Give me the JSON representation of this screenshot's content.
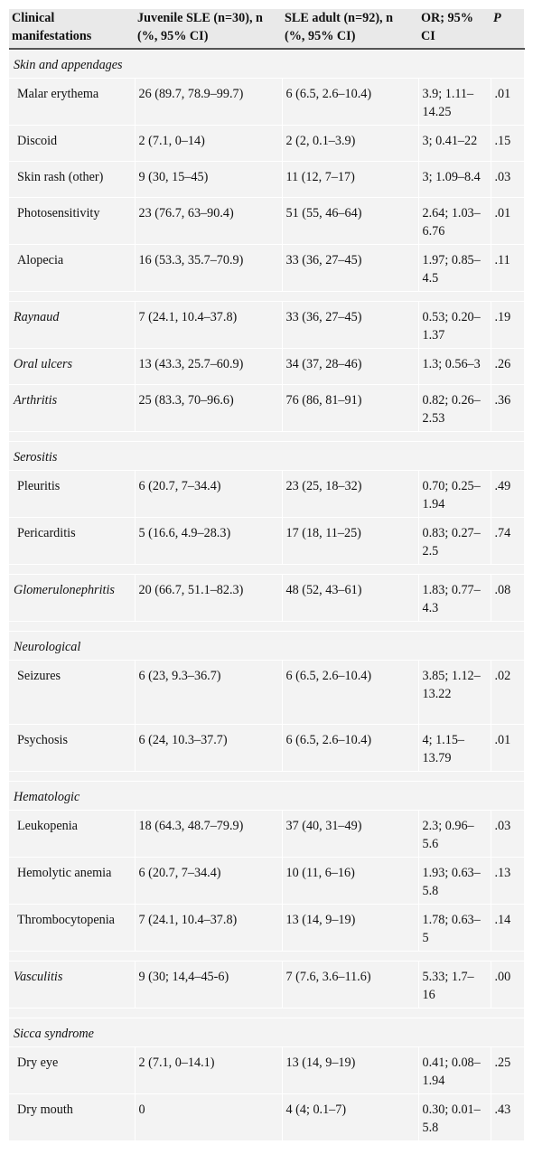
{
  "headers": {
    "manifestations": "Clinical manifestations",
    "juvenile": "Juvenile SLE (n=30), n (%, 95% CI)",
    "adult": "SLE adult (n=92), n (%, 95% CI)",
    "or": "OR; 95% CI",
    "p": "P"
  },
  "categories": {
    "skin": "Skin and appendages",
    "serositis": "Serositis",
    "neuro": "Neurological",
    "hemato": "Hematologic",
    "sicca": "Sicca syndrome"
  },
  "rows": {
    "malar": {
      "name": "Malar erythema",
      "juvenile": "26 (89.7, 78.9–99.7)",
      "adult": "6 (6.5, 2.6–10.4)",
      "or": "3.9; 1.11–14.25",
      "p": ".01"
    },
    "discoid": {
      "name": "Discoid",
      "juvenile": "2 (7.1, 0–14)",
      "adult": "2 (2, 0.1–3.9)",
      "or": "3; 0.41–22",
      "p": ".15"
    },
    "rash": {
      "name": "Skin rash (other)",
      "juvenile": "9 (30, 15–45)",
      "adult": "11 (12, 7–17)",
      "or": "3; 1.09–8.4",
      "p": ".03"
    },
    "photo": {
      "name": "Photosensitivity",
      "juvenile": "23 (76.7, 63–90.4)",
      "adult": "51 (55, 46–64)",
      "or": "2.64; 1.03–6.76",
      "p": ".01"
    },
    "alopecia": {
      "name": "Alopecia",
      "juvenile": "16 (53.3, 35.7–70.9)",
      "adult": "33 (36, 27–45)",
      "or": "1.97; 0.85–4.5",
      "p": ".11"
    },
    "raynaud": {
      "name": "Raynaud",
      "juvenile": "7 (24.1, 10.4–37.8)",
      "adult": "33 (36, 27–45)",
      "or": "0.53; 0.20–1.37",
      "p": ".19"
    },
    "oral": {
      "name": "Oral ulcers",
      "juvenile": "13 (43.3, 25.7–60.9)",
      "adult": "34 (37, 28–46)",
      "or": "1.3; 0.56–3",
      "p": ".26"
    },
    "arthritis": {
      "name": "Arthritis",
      "juvenile": "25 (83.3, 70–96.6)",
      "adult": "76 (86, 81–91)",
      "or": "0.82; 0.26–2.53",
      "p": ".36"
    },
    "pleuritis": {
      "name": "Pleuritis",
      "juvenile": "6 (20.7, 7–34.4)",
      "adult": "23 (25, 18–32)",
      "or": "0.70; 0.25–1.94",
      "p": ".49"
    },
    "pericarditis": {
      "name": "Pericarditis",
      "juvenile": "5 (16.6, 4.9–28.3)",
      "adult": "17 (18, 11–25)",
      "or": "0.83; 0.27–2.5",
      "p": ".74"
    },
    "glomerulo": {
      "name": "Glomerulonephritis",
      "juvenile": "20 (66.7, 51.1–82.3)",
      "adult": "48 (52, 43–61)",
      "or": "1.83; 0.77–4.3",
      "p": ".08"
    },
    "seizures": {
      "name": "Seizures",
      "juvenile": "6 (23, 9.3–36.7)",
      "adult": "6 (6.5, 2.6–10.4)",
      "or": "3.85; 1.12–13.22",
      "p": ".02"
    },
    "psychosis": {
      "name": "Psychosis",
      "juvenile": "6 (24, 10.3–37.7)",
      "adult": "6 (6.5, 2.6–10.4)",
      "or": "4; 1.15–13.79",
      "p": ".01"
    },
    "leukopenia": {
      "name": "Leukopenia",
      "juvenile": "18 (64.3, 48.7–79.9)",
      "adult": "37 (40, 31–49)",
      "or": "2.3; 0.96–5.6",
      "p": ".03"
    },
    "hemolytic": {
      "name": "Hemolytic anemia",
      "juvenile": "6 (20.7, 7–34.4)",
      "adult": "10 (11, 6–16)",
      "or": "1.93; 0.63–5.8",
      "p": ".13"
    },
    "thrombo": {
      "name": "Thrombocytopenia",
      "juvenile": "7 (24.1, 10.4–37.8)",
      "adult": "13 (14, 9–19)",
      "or": "1.78; 0.63–5",
      "p": ".14"
    },
    "vasculitis": {
      "name": "Vasculitis",
      "juvenile": "9 (30; 14,4–45-6)",
      "adult": "7 (7.6, 3.6–11.6)",
      "or": "5.33; 1.7–16",
      "p": ".00"
    },
    "dryeye": {
      "name": "Dry eye",
      "juvenile": "2 (7.1, 0–14.1)",
      "adult": "13 (14, 9–19)",
      "or": "0.41; 0.08–1.94",
      "p": ".25"
    },
    "drymouth": {
      "name": "Dry mouth",
      "juvenile": "0",
      "adult": "4 (4; 0.1–7)",
      "or": "0.30; 0.01–5.8",
      "p": ".43"
    }
  }
}
